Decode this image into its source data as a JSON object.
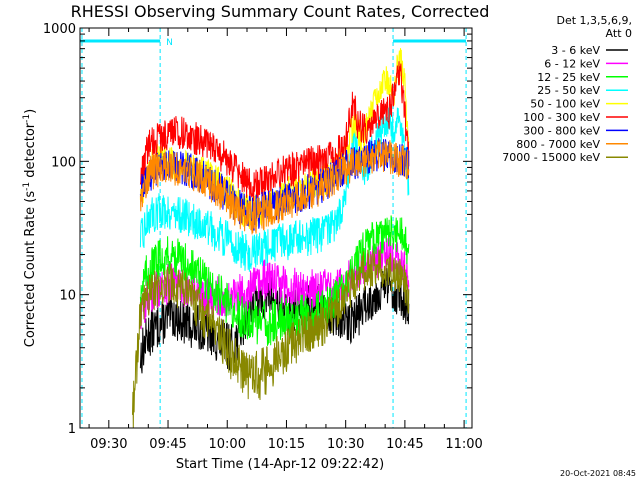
{
  "chart_data": {
    "type": "line",
    "title": "RHESSI Observing Summary Count Rates, Corrected",
    "xlabel": "Start Time (14-Apr-12 09:22:42)",
    "ylabel_main": "Corrected Count Rate (s",
    "ylabel_sup1": "-1",
    "ylabel_mid": " detector",
    "ylabel_sup2": "-1",
    "ylabel_end": ")",
    "x_unit": "minutes since 09:00",
    "xlim": [
      22.7,
      122
    ],
    "ylim": [
      1,
      1000
    ],
    "y_scale": "log",
    "x_ticks": [
      {
        "v": 30,
        "label": "09:30"
      },
      {
        "v": 45,
        "label": "09:45"
      },
      {
        "v": 60,
        "label": "10:00"
      },
      {
        "v": 75,
        "label": "10:15"
      },
      {
        "v": 90,
        "label": "10:30"
      },
      {
        "v": 105,
        "label": "10:45"
      },
      {
        "v": 120,
        "label": "11:00"
      }
    ],
    "y_ticks": [
      {
        "v": 1,
        "label": "1"
      },
      {
        "v": 10,
        "label": "10"
      },
      {
        "v": 100,
        "label": "100"
      },
      {
        "v": 1000,
        "label": "1000"
      }
    ],
    "legend": {
      "placement": "right",
      "header": [
        "Det 1,3,5,6,9,",
        "Att 0"
      ]
    },
    "annotation": {
      "text": "N",
      "night_bars": [
        [
          22.7,
          43
        ],
        [
          102,
          120.5
        ]
      ],
      "night_lines": [
        23.2,
        43,
        102,
        120.5
      ],
      "color": "#00e8ff"
    },
    "footer": "20-Oct-2021 08:45",
    "series": [
      {
        "name": "3 - 6 keV",
        "color": "#000000",
        "points": [
          [
            38,
            3.5
          ],
          [
            40,
            5
          ],
          [
            43,
            6
          ],
          [
            46,
            7
          ],
          [
            50,
            6
          ],
          [
            54,
            5.5
          ],
          [
            58,
            4.5
          ],
          [
            61,
            4
          ],
          [
            63,
            5
          ],
          [
            66,
            8
          ],
          [
            68,
            9
          ],
          [
            71,
            10
          ],
          [
            73,
            8
          ],
          [
            75,
            7
          ],
          [
            78,
            8
          ],
          [
            81,
            9
          ],
          [
            84,
            8
          ],
          [
            87,
            7
          ],
          [
            90,
            6
          ],
          [
            93,
            7
          ],
          [
            96,
            9
          ],
          [
            99,
            11
          ],
          [
            101,
            12
          ],
          [
            103,
            10
          ],
          [
            105,
            9
          ],
          [
            106,
            6
          ]
        ]
      },
      {
        "name": "6 - 12 keV",
        "color": "#ff00ff",
        "points": [
          [
            38,
            7
          ],
          [
            40,
            10
          ],
          [
            43,
            11.5
          ],
          [
            46,
            12
          ],
          [
            50,
            11
          ],
          [
            54,
            10
          ],
          [
            58,
            9.5
          ],
          [
            61,
            9
          ],
          [
            63,
            10
          ],
          [
            66,
            11
          ],
          [
            68,
            12
          ],
          [
            71,
            13.5
          ],
          [
            73,
            12
          ],
          [
            75,
            11.5
          ],
          [
            78,
            11
          ],
          [
            81,
            11
          ],
          [
            84,
            11
          ],
          [
            87,
            11
          ],
          [
            90,
            12
          ],
          [
            93,
            15
          ],
          [
            96,
            18
          ],
          [
            99,
            19
          ],
          [
            101,
            20
          ],
          [
            103,
            18
          ],
          [
            105,
            17
          ],
          [
            106,
            12
          ]
        ]
      },
      {
        "name": "12 - 25 keV",
        "color": "#00ff00",
        "points": [
          [
            38,
            11
          ],
          [
            40,
            15
          ],
          [
            43,
            19
          ],
          [
            46,
            20
          ],
          [
            50,
            17
          ],
          [
            54,
            13
          ],
          [
            58,
            10
          ],
          [
            61,
            8
          ],
          [
            63,
            7
          ],
          [
            66,
            6.5
          ],
          [
            68,
            6
          ],
          [
            71,
            6
          ],
          [
            73,
            6.5
          ],
          [
            75,
            6.5
          ],
          [
            78,
            7
          ],
          [
            81,
            7
          ],
          [
            84,
            7.5
          ],
          [
            87,
            8.5
          ],
          [
            90,
            12
          ],
          [
            93,
            18
          ],
          [
            96,
            25
          ],
          [
            99,
            27
          ],
          [
            101,
            30
          ],
          [
            103,
            27
          ],
          [
            105,
            28
          ],
          [
            106,
            18
          ]
        ]
      },
      {
        "name": "25 - 50 keV",
        "color": "#00ffff",
        "points": [
          [
            38,
            25
          ],
          [
            40,
            38
          ],
          [
            43,
            43
          ],
          [
            46,
            42
          ],
          [
            50,
            38
          ],
          [
            54,
            33
          ],
          [
            58,
            28
          ],
          [
            61,
            25
          ],
          [
            63,
            22
          ],
          [
            66,
            20
          ],
          [
            68,
            21
          ],
          [
            71,
            23
          ],
          [
            73,
            24
          ],
          [
            75,
            25
          ],
          [
            78,
            26
          ],
          [
            81,
            27
          ],
          [
            84,
            29
          ],
          [
            87,
            33
          ],
          [
            90,
            50
          ],
          [
            91,
            90
          ],
          [
            92,
            140
          ],
          [
            93,
            110
          ],
          [
            95,
            80
          ],
          [
            97,
            130
          ],
          [
            99,
            175
          ],
          [
            101,
            210
          ],
          [
            102,
            170
          ],
          [
            103,
            200
          ],
          [
            104,
            190
          ],
          [
            105,
            120
          ],
          [
            106,
            60
          ]
        ]
      },
      {
        "name": "50 - 100 keV",
        "color": "#ffff00",
        "points": [
          [
            38,
            55
          ],
          [
            40,
            90
          ],
          [
            43,
            100
          ],
          [
            46,
            98
          ],
          [
            50,
            92
          ],
          [
            54,
            82
          ],
          [
            58,
            68
          ],
          [
            61,
            55
          ],
          [
            63,
            45
          ],
          [
            66,
            42
          ],
          [
            68,
            44
          ],
          [
            71,
            48
          ],
          [
            73,
            52
          ],
          [
            75,
            56
          ],
          [
            78,
            60
          ],
          [
            81,
            65
          ],
          [
            84,
            72
          ],
          [
            87,
            82
          ],
          [
            90,
            120
          ],
          [
            92,
            200
          ],
          [
            94,
            150
          ],
          [
            96,
            200
          ],
          [
            98,
            320
          ],
          [
            100,
            420
          ],
          [
            101,
            400
          ],
          [
            102,
            300
          ],
          [
            103,
            480
          ],
          [
            104,
            560
          ],
          [
            105,
            350
          ],
          [
            106,
            110
          ]
        ]
      },
      {
        "name": "100 - 300 keV",
        "color": "#ff0000",
        "points": [
          [
            38,
            70
          ],
          [
            40,
            130
          ],
          [
            43,
            150
          ],
          [
            46,
            170
          ],
          [
            50,
            160
          ],
          [
            54,
            140
          ],
          [
            58,
            115
          ],
          [
            61,
            95
          ],
          [
            63,
            80
          ],
          [
            66,
            64
          ],
          [
            68,
            66
          ],
          [
            71,
            72
          ],
          [
            73,
            78
          ],
          [
            75,
            84
          ],
          [
            78,
            90
          ],
          [
            81,
            96
          ],
          [
            84,
            100
          ],
          [
            87,
            108
          ],
          [
            90,
            140
          ],
          [
            91,
            220
          ],
          [
            92,
            300
          ],
          [
            93,
            190
          ],
          [
            95,
            170
          ],
          [
            97,
            210
          ],
          [
            99,
            230
          ],
          [
            100,
            240
          ],
          [
            101,
            230
          ],
          [
            102,
            300
          ],
          [
            103,
            420
          ],
          [
            104,
            440
          ],
          [
            105,
            220
          ],
          [
            106,
            100
          ]
        ]
      },
      {
        "name": "300 - 800 keV",
        "color": "#0000ff",
        "points": [
          [
            38,
            58
          ],
          [
            40,
            78
          ],
          [
            43,
            90
          ],
          [
            46,
            92
          ],
          [
            50,
            87
          ],
          [
            54,
            76
          ],
          [
            58,
            62
          ],
          [
            61,
            50
          ],
          [
            63,
            45
          ],
          [
            66,
            40
          ],
          [
            68,
            42
          ],
          [
            71,
            46
          ],
          [
            73,
            50
          ],
          [
            75,
            53
          ],
          [
            78,
            56
          ],
          [
            81,
            60
          ],
          [
            84,
            66
          ],
          [
            87,
            76
          ],
          [
            90,
            90
          ],
          [
            93,
            100
          ],
          [
            96,
            108
          ],
          [
            99,
            112
          ],
          [
            101,
            110
          ],
          [
            103,
            104
          ],
          [
            105,
            100
          ],
          [
            106,
            98
          ]
        ]
      },
      {
        "name": "800 - 7000 keV",
        "color": "#ff8800",
        "points": [
          [
            38,
            55
          ],
          [
            40,
            80
          ],
          [
            43,
            88
          ],
          [
            46,
            90
          ],
          [
            50,
            84
          ],
          [
            54,
            74
          ],
          [
            58,
            60
          ],
          [
            61,
            48
          ],
          [
            63,
            42
          ],
          [
            66,
            38
          ],
          [
            68,
            40
          ],
          [
            71,
            44
          ],
          [
            73,
            47
          ],
          [
            75,
            50
          ],
          [
            78,
            53
          ],
          [
            81,
            57
          ],
          [
            84,
            63
          ],
          [
            87,
            73
          ],
          [
            90,
            87
          ],
          [
            93,
            98
          ],
          [
            96,
            106
          ],
          [
            99,
            111
          ],
          [
            101,
            109
          ],
          [
            103,
            103
          ],
          [
            105,
            99
          ],
          [
            106,
            97
          ]
        ]
      },
      {
        "name": "7000 - 15000 keV",
        "color": "#888800",
        "points": [
          [
            36,
            1.2
          ],
          [
            38,
            7
          ],
          [
            40,
            10
          ],
          [
            43,
            12
          ],
          [
            46,
            12
          ],
          [
            50,
            10
          ],
          [
            54,
            7
          ],
          [
            58,
            5
          ],
          [
            61,
            3.5
          ],
          [
            63,
            2.8
          ],
          [
            65,
            2.5
          ],
          [
            68,
            2.5
          ],
          [
            71,
            2.8
          ],
          [
            73,
            3.5
          ],
          [
            75,
            4
          ],
          [
            78,
            4.5
          ],
          [
            81,
            5.5
          ],
          [
            84,
            6
          ],
          [
            87,
            7
          ],
          [
            90,
            10
          ],
          [
            93,
            14
          ],
          [
            96,
            16
          ],
          [
            99,
            16
          ],
          [
            101,
            15
          ],
          [
            103,
            14
          ],
          [
            105,
            13
          ],
          [
            106,
            8
          ]
        ]
      }
    ]
  }
}
